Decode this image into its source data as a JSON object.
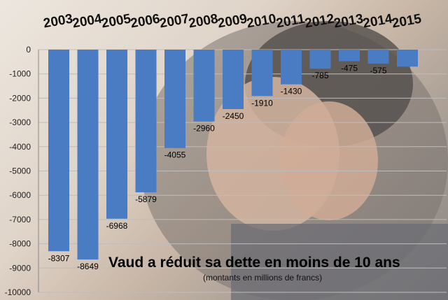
{
  "chart_data": {
    "type": "bar",
    "title": "Vaud a réduit sa dette en moins de 10 ans",
    "subtitle": "(montants en millions de francs)",
    "categories": [
      "2003",
      "2004",
      "2005",
      "2006",
      "2007",
      "2008",
      "2009",
      "2010",
      "2011",
      "2012",
      "2013",
      "2014",
      "2015"
    ],
    "values": [
      -8307,
      -8649,
      -6968,
      -5879,
      -4055,
      -2960,
      -2450,
      -1910,
      -1430,
      -785,
      -475,
      -575,
      -700
    ],
    "data_labels": [
      "-8307",
      "-8649",
      "-6968",
      "-5879",
      "-4055",
      "-2960",
      "-2450",
      "-1910",
      "-1430",
      "-785",
      "-475",
      "-575",
      ""
    ],
    "ylim": [
      -10000,
      0
    ],
    "yticks": [
      "0",
      "-1000",
      "-2000",
      "-3000",
      "-4000",
      "-5000",
      "-6000",
      "-7000",
      "-8000",
      "-9000",
      "-10000"
    ],
    "xlabel": "",
    "ylabel": "",
    "grid": true,
    "category_axis_position": "top",
    "bar_color": "#4a7cc4",
    "grid_color": "#bdbdbd"
  }
}
